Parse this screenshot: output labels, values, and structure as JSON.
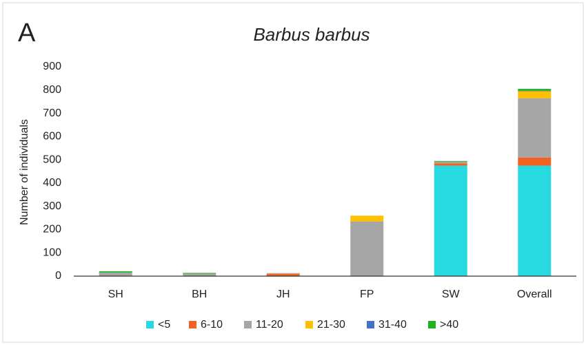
{
  "chart_data": {
    "type": "stacked_bar",
    "panel_label": "A",
    "title": "Barbus barbus",
    "y_label": "Number of individuals",
    "categories": [
      "SH",
      "BH",
      "JH",
      "FP",
      "SW",
      "Overall"
    ],
    "series": [
      {
        "name": "<5",
        "color": "#29d9e0",
        "values": [
          0,
          0,
          0,
          0,
          475,
          475
        ]
      },
      {
        "name": "6-10",
        "color": "#f26322",
        "values": [
          0,
          0,
          10,
          0,
          10,
          35
        ]
      },
      {
        "name": "11-20",
        "color": "#a6a6a6",
        "values": [
          16,
          11,
          3,
          235,
          7,
          255
        ]
      },
      {
        "name": "21-30",
        "color": "#ffc000",
        "values": [
          0,
          0,
          0,
          25,
          0,
          30
        ]
      },
      {
        "name": "31-40",
        "color": "#4472c4",
        "values": [
          0,
          0,
          0,
          0,
          0,
          2
        ]
      },
      {
        "name": ">40",
        "color": "#1db31d",
        "values": [
          5,
          3,
          0,
          0,
          3,
          8
        ]
      }
    ],
    "ylim": [
      0,
      900
    ],
    "yticks": [
      0,
      100,
      200,
      300,
      400,
      500,
      600,
      700,
      800,
      900
    ],
    "grid": false,
    "legend": "bottom"
  }
}
